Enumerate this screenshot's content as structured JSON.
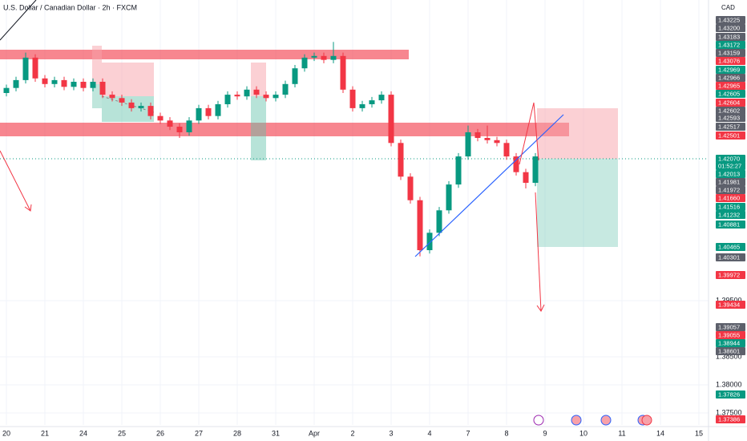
{
  "chart_data": {
    "type": "candlestick",
    "title": "U.S. Dollar / Canadian Dollar · 2h · FXCM",
    "currency": "CAD",
    "up_color": "#089981",
    "down_color": "#f23645",
    "grid": true,
    "x": [
      0,
      0.25,
      0.5,
      0.75,
      1,
      1.25,
      1.5,
      1.75,
      2,
      2.25,
      2.5,
      2.75,
      3,
      3.25,
      3.5,
      3.75,
      4,
      4.25,
      4.5,
      4.75,
      5,
      5.25,
      5.5,
      5.75,
      6,
      6.25,
      6.5,
      6.75,
      7,
      7.25,
      7.5,
      7.75,
      8,
      8.25,
      8.5,
      8.75,
      9,
      9.25,
      9.5,
      9.75,
      10,
      10.25,
      10.5,
      10.75,
      11,
      11.25,
      11.5,
      11.75,
      12,
      12.25,
      12.5,
      12.75,
      13,
      13.25,
      13.5,
      13.75
    ],
    "open": [
      1.432,
      1.4329,
      1.4343,
      1.4383,
      1.4346,
      1.4336,
      1.4343,
      1.4331,
      1.434,
      1.4329,
      1.434,
      1.4317,
      1.4311,
      1.4303,
      1.4293,
      1.4297,
      1.4279,
      1.4271,
      1.426,
      1.425,
      1.4271,
      1.4293,
      1.4279,
      1.43,
      1.4317,
      1.4314,
      1.4326,
      1.4317,
      1.4311,
      1.4317,
      1.4336,
      1.4364,
      1.4383,
      1.4386,
      1.4379,
      1.4386,
      1.4326,
      1.4293,
      1.43,
      1.4307,
      1.4317,
      1.4231,
      1.4171,
      1.4129,
      1.404,
      1.4071,
      1.4111,
      1.4157,
      1.4207,
      1.425,
      1.424,
      1.4236,
      1.4231,
      1.4207,
      1.4179,
      1.416
    ],
    "high": [
      1.4335,
      1.4349,
      1.4392,
      1.4389,
      1.4352,
      1.4349,
      1.4349,
      1.4346,
      1.4346,
      1.4346,
      1.4346,
      1.4323,
      1.4317,
      1.4309,
      1.4303,
      1.4303,
      1.4285,
      1.4277,
      1.4266,
      1.4277,
      1.4299,
      1.4299,
      1.4306,
      1.4323,
      1.4323,
      1.4332,
      1.4332,
      1.4323,
      1.4323,
      1.4342,
      1.437,
      1.4389,
      1.4392,
      1.4392,
      1.4411,
      1.4392,
      1.4332,
      1.4306,
      1.4313,
      1.4323,
      1.4323,
      1.4237,
      1.4177,
      1.4135,
      1.4077,
      1.4117,
      1.4163,
      1.4213,
      1.4262,
      1.4256,
      1.4262,
      1.4242,
      1.4237,
      1.4213,
      1.4185,
      1.4213
    ],
    "low": [
      1.4314,
      1.4323,
      1.4337,
      1.434,
      1.433,
      1.433,
      1.4325,
      1.4325,
      1.4323,
      1.4323,
      1.4311,
      1.4305,
      1.4297,
      1.4287,
      1.4287,
      1.4273,
      1.4265,
      1.4254,
      1.424,
      1.4244,
      1.4265,
      1.4273,
      1.4273,
      1.4294,
      1.4308,
      1.4308,
      1.4311,
      1.4305,
      1.4305,
      1.4311,
      1.433,
      1.4358,
      1.4377,
      1.4373,
      1.4373,
      1.432,
      1.4287,
      1.4287,
      1.4294,
      1.4301,
      1.4225,
      1.4165,
      1.4123,
      1.4029,
      1.4034,
      1.4065,
      1.4105,
      1.4151,
      1.4201,
      1.4234,
      1.423,
      1.4225,
      1.4201,
      1.4173,
      1.415,
      1.4154
    ],
    "close": [
      1.4329,
      1.4343,
      1.4383,
      1.4346,
      1.4336,
      1.4343,
      1.4331,
      1.434,
      1.4329,
      1.434,
      1.4317,
      1.4311,
      1.4303,
      1.4293,
      1.4297,
      1.4279,
      1.4271,
      1.426,
      1.425,
      1.4271,
      1.4293,
      1.4279,
      1.43,
      1.4317,
      1.4314,
      1.4326,
      1.4317,
      1.4311,
      1.4317,
      1.4336,
      1.4364,
      1.4383,
      1.4386,
      1.4379,
      1.4386,
      1.4326,
      1.4293,
      1.43,
      1.4307,
      1.4317,
      1.4231,
      1.4171,
      1.4129,
      1.404,
      1.4071,
      1.4111,
      1.4157,
      1.4207,
      1.425,
      1.424,
      1.4236,
      1.4231,
      1.4207,
      1.4179,
      1.416,
      1.4207
    ],
    "ylim": [
      1.37286,
      1.44857
    ],
    "yticks": [
      {
        "value": 1.395,
        "label": "1.39500"
      },
      {
        "value": 1.385,
        "label": "1.38500"
      },
      {
        "value": 1.38,
        "label": "1.38000"
      },
      {
        "value": 1.375,
        "label": "1.37500"
      }
    ],
    "xlim": [
      -0.1667,
      18.25
    ],
    "xticks": [
      {
        "value": 0,
        "label": "20"
      },
      {
        "value": 1,
        "label": "21"
      },
      {
        "value": 2,
        "label": "24"
      },
      {
        "value": 3,
        "label": "25"
      },
      {
        "value": 4,
        "label": "26"
      },
      {
        "value": 5,
        "label": "27"
      },
      {
        "value": 6,
        "label": "28"
      },
      {
        "value": 7,
        "label": "31"
      },
      {
        "value": 8,
        "label": "Apr"
      },
      {
        "value": 9,
        "label": "2"
      },
      {
        "value": 10,
        "label": "3"
      },
      {
        "value": 11,
        "label": "4"
      },
      {
        "value": 12,
        "label": "7"
      },
      {
        "value": 13,
        "label": "8"
      },
      {
        "value": 14,
        "label": "9"
      },
      {
        "value": 15,
        "label": "10"
      },
      {
        "value": 16,
        "label": "11"
      },
      {
        "value": 17,
        "label": "14"
      },
      {
        "value": 18,
        "label": "15"
      }
    ],
    "price_labels": [
      {
        "label": "1.43225",
        "color": "#5d606b"
      },
      {
        "label": "1.43200",
        "color": "#5d606b"
      },
      {
        "label": "1.43183",
        "color": "#5d606b"
      },
      {
        "label": "1.43172",
        "color": "#089981"
      },
      {
        "label": "1.43159",
        "color": "#5d606b"
      },
      {
        "label": "1.43076",
        "color": "#f23645"
      },
      {
        "label": "1.42969",
        "color": "#089981"
      },
      {
        "label": "1.42966",
        "color": "#5d606b"
      },
      {
        "label": "1.42965",
        "color": "#f23645"
      },
      {
        "label": "1.42605",
        "color": "#089981"
      },
      {
        "label": "1.42604",
        "color": "#f23645"
      },
      {
        "label": "1.42602",
        "color": "#5d606b"
      },
      {
        "label": "1.42593",
        "color": "#5d606b"
      },
      {
        "label": "1.42517",
        "color": "#5d606b"
      },
      {
        "label": "1.42501",
        "color": "#f23645"
      },
      {
        "label": "1.42070",
        "color": "#089981"
      },
      {
        "label": "01:52:27",
        "color": "#089981"
      },
      {
        "label": "1.42013",
        "color": "#089981"
      },
      {
        "label": "1.41981",
        "color": "#5d606b"
      },
      {
        "label": "1.41972",
        "color": "#5d606b"
      },
      {
        "label": "1.41660",
        "color": "#f23645"
      },
      {
        "label": "1.41516",
        "color": "#089981"
      },
      {
        "label": "1.41232",
        "color": "#089981"
      },
      {
        "label": "1.40881",
        "color": "#089981"
      },
      {
        "label": "1.40465",
        "color": "#089981"
      },
      {
        "label": "1.40301",
        "color": "#5d606b"
      },
      {
        "label": "1.39972",
        "color": "#f23645"
      },
      {
        "label": "1.39434",
        "color": "#f23645"
      },
      {
        "label": "1.39057",
        "color": "#5d606b"
      },
      {
        "label": "1.39055",
        "color": "#f23645"
      },
      {
        "label": "1.38944",
        "color": "#089981"
      },
      {
        "label": "1.38601",
        "color": "#5d606b"
      },
      {
        "label": "1.37826",
        "color": "#089981"
      },
      {
        "label": "1.37386",
        "color": "#f23645"
      }
    ]
  }
}
